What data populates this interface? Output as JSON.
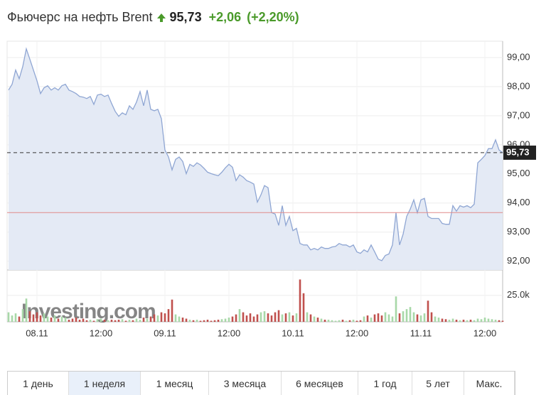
{
  "header": {
    "title": "Фьючерс на нефть Brent",
    "price": "95,73",
    "change": "+2,06",
    "change_pct": "(+2,20%)"
  },
  "chart_data": {
    "type": "line",
    "watermark": "Investing.com",
    "categories": [
      null,
      null,
      null,
      null,
      null,
      null,
      null,
      null,
      "08.11",
      null,
      null,
      null,
      null,
      null,
      null,
      null,
      null,
      null,
      null,
      null,
      null,
      null,
      null,
      null,
      null,
      null,
      "12:00",
      null,
      null,
      null,
      null,
      null,
      null,
      null,
      null,
      null,
      null,
      null,
      null,
      null,
      null,
      null,
      null,
      null,
      "09.11",
      null,
      null,
      null,
      null,
      null,
      null,
      null,
      null,
      null,
      null,
      null,
      null,
      null,
      null,
      null,
      null,
      null,
      "12:00",
      null,
      null,
      null,
      null,
      null,
      null,
      null,
      null,
      null,
      null,
      null,
      null,
      null,
      null,
      null,
      null,
      null,
      "10.11",
      null,
      null,
      null,
      null,
      null,
      null,
      null,
      null,
      null,
      null,
      null,
      null,
      null,
      null,
      null,
      null,
      null,
      "12:00",
      null,
      null,
      null,
      null,
      null,
      null,
      null,
      null,
      null,
      null,
      null,
      null,
      null,
      null,
      null,
      null,
      null,
      "11.11",
      null,
      null,
      null,
      null,
      null,
      null,
      null,
      null,
      null,
      null,
      null,
      null,
      null,
      null,
      null,
      null,
      null,
      "12:00",
      null,
      null,
      null,
      null,
      null
    ],
    "series": [
      {
        "color": "#8fa6d3",
        "fill": "#e4eaf5",
        "values": [
          97.88,
          98.08,
          98.57,
          98.27,
          98.69,
          99.3,
          98.94,
          98.57,
          98.2,
          97.76,
          97.96,
          98.03,
          97.88,
          97.96,
          97.88,
          98.03,
          98.08,
          97.88,
          97.83,
          97.76,
          97.66,
          97.64,
          97.59,
          97.66,
          97.39,
          97.71,
          97.74,
          97.66,
          97.71,
          97.42,
          97.15,
          96.98,
          97.1,
          97.03,
          97.34,
          97.22,
          97.47,
          97.83,
          97.34,
          97.88,
          97.22,
          97.17,
          97.22,
          96.9,
          95.82,
          95.58,
          95.14,
          95.5,
          95.58,
          95.43,
          95.01,
          95.33,
          95.26,
          95.38,
          95.31,
          95.19,
          95.06,
          95.01,
          94.97,
          94.94,
          95.06,
          95.21,
          95.33,
          95.23,
          94.77,
          94.97,
          94.89,
          94.77,
          94.72,
          94.65,
          94.03,
          94.28,
          94.6,
          94.53,
          93.67,
          93.62,
          93.23,
          93.91,
          93.23,
          93.54,
          93.05,
          93.13,
          92.61,
          92.56,
          92.56,
          92.39,
          92.44,
          92.39,
          92.49,
          92.44,
          92.44,
          92.49,
          92.51,
          92.61,
          92.56,
          92.56,
          92.49,
          92.56,
          92.32,
          92.27,
          92.39,
          92.32,
          92.56,
          92.32,
          92.07,
          92.02,
          92.2,
          92.25,
          92.56,
          93.67,
          92.56,
          92.93,
          93.54,
          93.79,
          94.11,
          93.67,
          94.11,
          94.16,
          93.54,
          93.47,
          93.47,
          93.47,
          93.3,
          93.27,
          93.27,
          93.91,
          93.72,
          93.91,
          93.86,
          93.91,
          93.84,
          93.96,
          95.38,
          95.5,
          95.63,
          95.87,
          95.87,
          96.17,
          95.82,
          95.73
        ]
      }
    ],
    "ylim": [
      91.7,
      99.56
    ],
    "yticks": [
      {
        "value": 92,
        "label": "92,00"
      },
      {
        "value": 93,
        "label": "93,00"
      },
      {
        "value": 94,
        "label": "94,00"
      },
      {
        "value": 95,
        "label": "95,00"
      },
      {
        "value": 96,
        "label": "96,00"
      },
      {
        "value": 97,
        "label": "97,00"
      },
      {
        "value": 98,
        "label": "98,00"
      },
      {
        "value": 99,
        "label": "99,00"
      }
    ],
    "grid": true,
    "reference_lines": [
      {
        "value": 93.67,
        "color": "#e08a8a",
        "style": "solid"
      },
      {
        "value": 95.73,
        "label": "95,73",
        "color": "#333333",
        "style": "dashed"
      }
    ],
    "volume": {
      "color_up": "#a8d8a8",
      "color_down": "#c0504d",
      "ylim": [
        0,
        49000
      ],
      "yticks": [
        {
          "value": 25000,
          "label": "25.0k"
        }
      ],
      "values": [
        9000,
        6000,
        8000,
        5000,
        12000,
        22000,
        10000,
        7000,
        9000,
        6000,
        8000,
        5000,
        4000,
        6000,
        3000,
        5000,
        4000,
        2000,
        3000,
        4000,
        2000,
        3000,
        1500,
        2000,
        1000,
        2500,
        3000,
        2000,
        1500,
        2000,
        1500,
        2000,
        2500,
        1000,
        2000,
        1500,
        3000,
        2000,
        4000,
        3000,
        5000,
        7000,
        6000,
        9000,
        8000,
        12000,
        21000,
        7000,
        5000,
        4000,
        3000,
        2000,
        1500,
        2000,
        1000,
        1500,
        2000,
        1000,
        1500,
        2000,
        2500,
        3000,
        4000,
        5000,
        7000,
        12000,
        9000,
        6000,
        8000,
        5000,
        7000,
        9000,
        10000,
        8000,
        6000,
        9000,
        11000,
        7000,
        8000,
        9000,
        6000,
        8000,
        40000,
        27000,
        9000,
        7000,
        5000,
        4000,
        3000,
        2000,
        2000,
        1500,
        1000,
        1500,
        2000,
        1000,
        1500,
        2000,
        1000,
        1500,
        5000,
        6000,
        4000,
        7000,
        8000,
        6000,
        9000,
        7000,
        5000,
        24000,
        8000,
        10000,
        12000,
        14000,
        9000,
        7000,
        6000,
        8000,
        20000,
        9000,
        5000,
        4000,
        3000,
        2500,
        2000,
        3000,
        2000,
        1500,
        2000,
        1500,
        2000,
        1500,
        3000,
        2500,
        4000,
        3000,
        2500,
        2000,
        1500,
        1000
      ]
    }
  },
  "ranges": {
    "items": [
      "1 день",
      "1 неделя",
      "1 месяц",
      "3 месяца",
      "6 месяцев",
      "1 год",
      "5 лет",
      "Макс."
    ],
    "selected": 1
  }
}
